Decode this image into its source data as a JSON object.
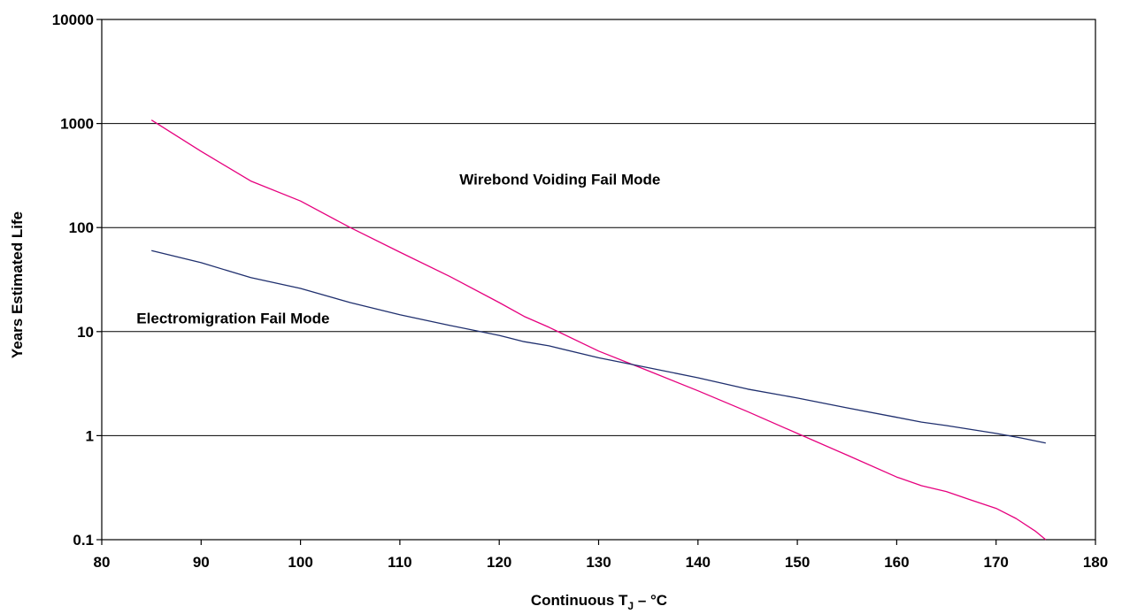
{
  "chart_data": {
    "type": "line",
    "title": "",
    "xlabel": {
      "main": "Continuous T",
      "subscript": "J",
      "suffix": " – °C"
    },
    "ylabel": "Years Estimated Life",
    "xlim": [
      80,
      180
    ],
    "ylim": [
      0.1,
      10000
    ],
    "yscale": "log",
    "xticks": [
      80,
      90,
      100,
      110,
      120,
      130,
      140,
      150,
      160,
      170,
      180
    ],
    "yticks": [
      "0.1",
      "1",
      "10",
      "100",
      "1000",
      "10000"
    ],
    "grid": "horizontal",
    "legend": "none",
    "series": [
      {
        "name": "Wirebond Voiding Fail Mode",
        "color": "#e6007e",
        "x": [
          85,
          90,
          95,
          100,
          105,
          110,
          115,
          120,
          122.5,
          125,
          130,
          135,
          140,
          145,
          150,
          155,
          160,
          162.5,
          165,
          167.5,
          170,
          172,
          174,
          175
        ],
        "y": [
          1080,
          540,
          280,
          180,
          100,
          58,
          34,
          19,
          14,
          11,
          6.5,
          4.2,
          2.7,
          1.7,
          1.05,
          0.65,
          0.4,
          0.33,
          0.29,
          0.24,
          0.2,
          0.16,
          0.12,
          0.1
        ]
      },
      {
        "name": "Electromigration Fail Mode",
        "color": "#1f2f6e",
        "x": [
          85,
          90,
          95,
          100,
          105,
          110,
          115,
          120,
          122.5,
          125,
          130,
          135,
          140,
          145,
          150,
          155,
          160,
          162.5,
          165,
          170,
          172.5,
          175
        ],
        "y": [
          60,
          46,
          33,
          26,
          19,
          14.5,
          11.5,
          9.2,
          8,
          7.3,
          5.6,
          4.5,
          3.6,
          2.8,
          2.3,
          1.85,
          1.5,
          1.35,
          1.25,
          1.05,
          0.95,
          0.85
        ]
      }
    ],
    "annotations": [
      {
        "text": "Wirebond Voiding Fail Mode",
        "x": 116,
        "y": 260
      },
      {
        "text": "Electromigration Fail Mode",
        "x": 83.5,
        "y": 12
      }
    ]
  }
}
